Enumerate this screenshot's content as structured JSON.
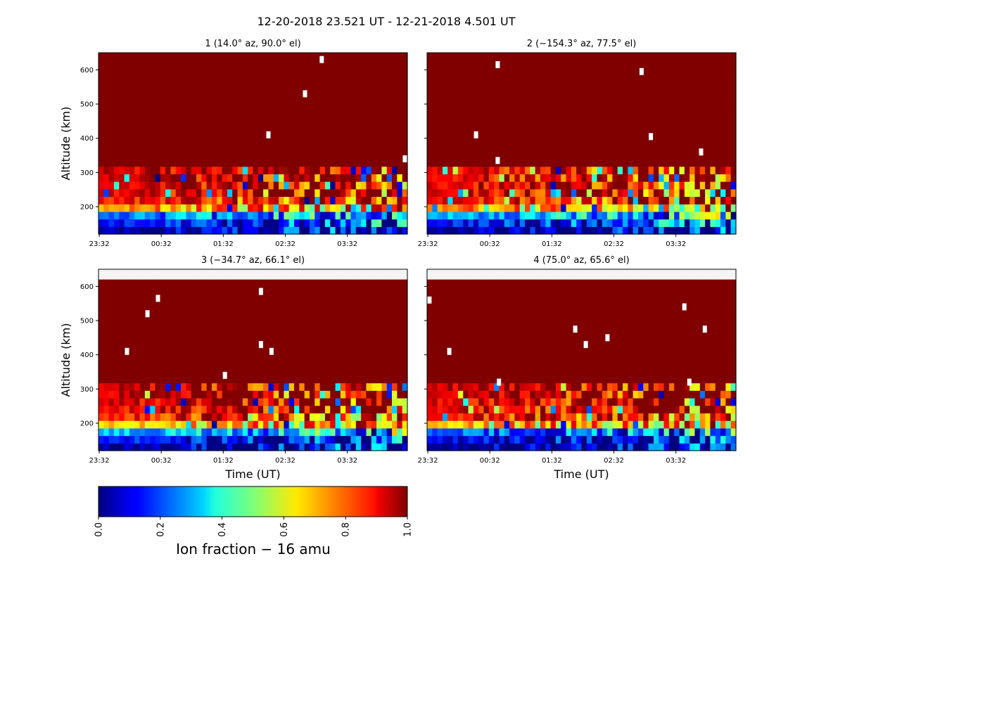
{
  "figure": {
    "suptitle": "12-20-2018 23.521 UT - 12-21-2018 4.501 UT"
  },
  "chart_data": {
    "type": "heatmap",
    "title": "12-20-2018 23.521 UT - 12-21-2018 4.501 UT",
    "xlabel": "Time (UT)",
    "ylabel": "Altitude (km)",
    "x_tick_labels": [
      "23:32",
      "00:32",
      "01:32",
      "02:32",
      "03:32"
    ],
    "x_tick_hours": [
      23.533,
      24.533,
      25.533,
      26.533,
      27.533
    ],
    "xlim_hours": [
      23.521,
      28.501
    ],
    "ylim_km": [
      120,
      650
    ],
    "y_ticks": [
      200,
      300,
      400,
      500,
      600
    ],
    "altitude_bin_km": 22,
    "time_columns": 60,
    "colorscale": "jet",
    "colorbar": {
      "label": "Ion fraction − 16 amu",
      "range": [
        0.0,
        1.0
      ],
      "ticks": [
        "0.0",
        "0.2",
        "0.4",
        "0.6",
        "0.8",
        "1.0"
      ]
    },
    "panels": [
      {
        "title": "1 (14.0° az, 90.0° el)",
        "title_parts": {
          "beam": "1",
          "az": "14.0",
          "el": "90.0"
        },
        "data_top_km": 650,
        "show_ylabel": true,
        "show_xlabel": false,
        "seed": 11,
        "profile": {
          "200": 0.72,
          "178": 0.25,
          "156": 0.12,
          "134": 0.05,
          "222": 0.86,
          "244": 0.9,
          "266": 0.92,
          "288": 0.93,
          "above": 1.0
        },
        "missing_points": [
          {
            "t": 27.12,
            "alt": 630
          },
          {
            "t": 26.85,
            "alt": 530
          },
          {
            "t": 26.26,
            "alt": 410
          },
          {
            "t": 28.46,
            "alt": 340
          }
        ]
      },
      {
        "title": "2 (−154.3° az, 77.5° el)",
        "title_parts": {
          "beam": "2",
          "az": "−154.3",
          "el": "77.5"
        },
        "data_top_km": 650,
        "show_ylabel": false,
        "show_xlabel": false,
        "seed": 23,
        "profile": {
          "200": 0.75,
          "178": 0.3,
          "156": 0.14,
          "134": 0.05,
          "222": 0.87,
          "244": 0.9,
          "266": 0.9,
          "288": 0.88,
          "above": 1.0
        },
        "missing_points": [
          {
            "t": 24.66,
            "alt": 615
          },
          {
            "t": 26.98,
            "alt": 595
          },
          {
            "t": 24.31,
            "alt": 410
          },
          {
            "t": 27.13,
            "alt": 405
          },
          {
            "t": 24.66,
            "alt": 335
          },
          {
            "t": 27.94,
            "alt": 360
          }
        ]
      },
      {
        "title": "3 (−34.7° az, 66.1° el)",
        "title_parts": {
          "beam": "3",
          "az": "−34.7",
          "el": "66.1"
        },
        "data_top_km": 620,
        "show_ylabel": true,
        "show_xlabel": true,
        "seed": 37,
        "profile": {
          "200": 0.68,
          "178": 0.32,
          "156": 0.14,
          "134": 0.05,
          "222": 0.85,
          "244": 0.88,
          "266": 0.9,
          "288": 0.92,
          "above": 1.0
        },
        "missing_points": [
          {
            "t": 24.48,
            "alt": 565
          },
          {
            "t": 24.31,
            "alt": 520
          },
          {
            "t": 23.98,
            "alt": 410
          },
          {
            "t": 26.14,
            "alt": 585
          },
          {
            "t": 26.14,
            "alt": 430
          },
          {
            "t": 26.31,
            "alt": 410
          },
          {
            "t": 25.56,
            "alt": 340
          }
        ]
      },
      {
        "title": "4 (75.0° az, 65.6° el)",
        "title_parts": {
          "beam": "4",
          "az": "75.0",
          "el": "65.6"
        },
        "data_top_km": 620,
        "show_ylabel": false,
        "show_xlabel": true,
        "seed": 51,
        "profile": {
          "200": 0.7,
          "178": 0.22,
          "156": 0.1,
          "134": 0.05,
          "222": 0.86,
          "244": 0.9,
          "266": 0.9,
          "288": 0.92,
          "above": 1.0
        },
        "missing_points": [
          {
            "t": 23.56,
            "alt": 560
          },
          {
            "t": 23.88,
            "alt": 410
          },
          {
            "t": 25.91,
            "alt": 475
          },
          {
            "t": 26.08,
            "alt": 430
          },
          {
            "t": 26.43,
            "alt": 450
          },
          {
            "t": 27.67,
            "alt": 540
          },
          {
            "t": 28.0,
            "alt": 475
          },
          {
            "t": 24.68,
            "alt": 320
          },
          {
            "t": 27.75,
            "alt": 320
          }
        ]
      }
    ]
  }
}
